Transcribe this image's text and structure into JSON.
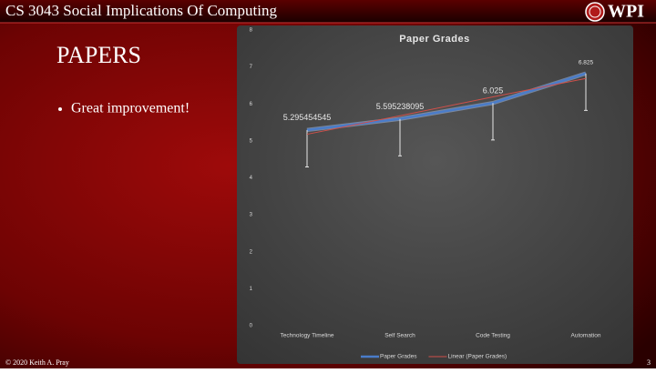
{
  "header": {
    "title": "CS 3043 Social Implications Of Computing",
    "logo": "WPI"
  },
  "slide": {
    "title": "PAPERS",
    "bullets": [
      "Great improvement!"
    ]
  },
  "footer": {
    "copyright": "© 2020 Keith A. Pray",
    "page": "3"
  },
  "chart_data": {
    "type": "line",
    "title": "Paper Grades",
    "categories": [
      "Technology Timeline",
      "Self Search",
      "Code Testing",
      "Automation"
    ],
    "series": [
      {
        "name": "Paper Grades",
        "color": "#4a7cc9",
        "values": [
          5.295454545,
          5.595238095,
          6.025,
          6.825
        ],
        "errors": [
          1,
          1,
          1,
          1
        ]
      },
      {
        "name": "Linear (Paper Grades)",
        "color": "#d0504a",
        "values": [
          5.18,
          5.68,
          6.19,
          6.69
        ]
      }
    ],
    "ylim": [
      0,
      8
    ],
    "yticks": [
      0,
      1,
      2,
      3,
      4,
      5,
      6,
      7,
      8
    ],
    "grid": false,
    "legend": "bottom"
  }
}
